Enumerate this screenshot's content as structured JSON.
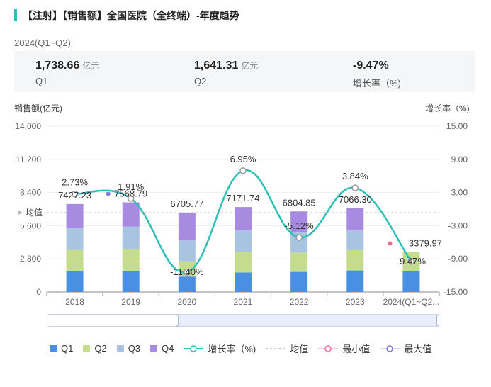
{
  "header": {
    "title": "【注射】【销售额】全国医院（全终端）-年度趋势",
    "period": "2024(Q1~Q2)"
  },
  "kpis": [
    {
      "value": "1,738.66",
      "unit": "亿元",
      "label": "Q1"
    },
    {
      "value": "1,641.31",
      "unit": "亿元",
      "label": "Q2"
    },
    {
      "value": "-9.47%",
      "unit": "",
      "label": "增长率（%)"
    }
  ],
  "axes": {
    "left_title": "销售额(亿元)",
    "right_title": "增长率（%)",
    "left_ticks": [
      "14,000",
      "11,200",
      "8,400",
      "5,600",
      "2,800",
      "0"
    ],
    "right_ticks": [
      "15.00",
      "9.00",
      "3.00",
      "-3.00",
      "-9.00",
      "-15.00"
    ],
    "avg_label": "均值"
  },
  "legend": {
    "q1": "Q1",
    "q2": "Q2",
    "q3": "Q3",
    "q4": "Q4",
    "growth": "增长率（%)",
    "avg": "均值",
    "min": "最小值",
    "max": "最大值"
  },
  "colors": {
    "q1": "#4a90e2",
    "q2": "#c5dc8e",
    "q3": "#a9c4e0",
    "q4": "#a78be0",
    "line": "#2bc0b8",
    "min": "#f06a9b",
    "max": "#7b7be0",
    "avg": "#bbbbbb"
  },
  "chart_data": {
    "type": "bar",
    "stacked": true,
    "categories": [
      "2018",
      "2019",
      "2020",
      "2021",
      "2022",
      "2023",
      "2024(Q1~Q2..."
    ],
    "series": [
      {
        "name": "Q1",
        "values": [
          1800,
          1800,
          1300,
          1650,
          1700,
          1820,
          1738.66
        ]
      },
      {
        "name": "Q2",
        "values": [
          1750,
          1820,
          1300,
          1750,
          1630,
          1720,
          1641.31
        ]
      },
      {
        "name": "Q3",
        "values": [
          1850,
          1900,
          1750,
          1820,
          1730,
          1650,
          0
        ]
      },
      {
        "name": "Q4",
        "values": [
          2027.23,
          2048.79,
          2355.77,
          1951.74,
          1744.85,
          1876.3,
          0
        ]
      }
    ],
    "totals": [
      7427.23,
      7568.79,
      6705.77,
      7171.74,
      6804.85,
      7066.3,
      3379.97
    ],
    "total_labels": [
      "7427.23",
      "7568.79",
      "6705.77",
      "7171.74",
      "6804.85",
      "7066.30",
      "3379.97"
    ],
    "growth": {
      "name": "增长率（%)",
      "values": [
        2.73,
        1.91,
        -11.4,
        6.95,
        -5.12,
        3.84,
        -9.47
      ],
      "labels": [
        "2.73%",
        "1.91%",
        "-11.40%",
        "6.95%",
        "-5.12%",
        "3.84%",
        "-9.47%"
      ]
    },
    "average": 6700,
    "ylim_left": [
      0,
      14000
    ],
    "ylim_right": [
      -15,
      15
    ]
  }
}
